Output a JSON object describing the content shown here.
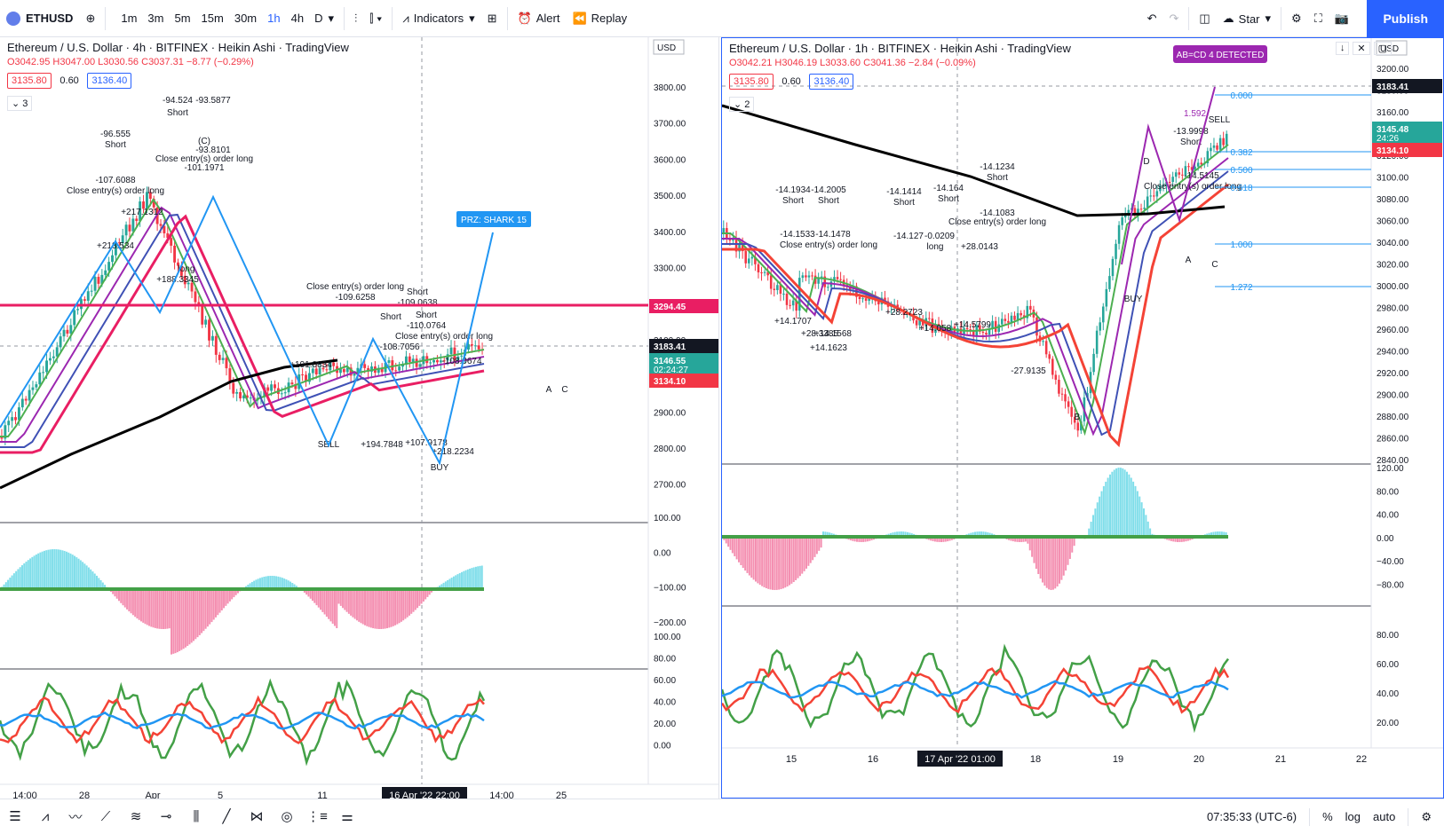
{
  "toolbar": {
    "symbol": "ETHUSD",
    "timeframes": [
      "1m",
      "3m",
      "5m",
      "15m",
      "30m",
      "1h",
      "4h",
      "D"
    ],
    "indicators_label": "Indicators",
    "alert_label": "Alert",
    "replay_label": "Replay",
    "star_label": "Star",
    "publish_label": "Publish"
  },
  "left_chart": {
    "title": "Ethereum / U.S. Dollar · 4h · BITFINEX · Heikin Ashi · TradingView",
    "ohlc": {
      "o": "O3042.95",
      "h": "H3047.00",
      "l": "L3030.56",
      "c": "C3037.31",
      "chg": "−8.77 (−0.29%)"
    },
    "sell_price": "3135.80",
    "qty": "0.60",
    "buy_price": "3136.40",
    "indicator_count": "3",
    "currency": "USD",
    "price_ticks": [
      "3800.00",
      "3700.00",
      "3600.00",
      "3500.00",
      "3400.00",
      "3300.00",
      "3200.00",
      "3100.00",
      "3000.00",
      "2900.00",
      "2800.00",
      "2700.00"
    ],
    "osc1_ticks": [
      "100.00",
      "0.00",
      "−100.00",
      "−200.00"
    ],
    "osc2_ticks": [
      "100.00",
      "80.00",
      "60.00",
      "40.00",
      "20.00",
      "0.00"
    ],
    "time_ticks": [
      "14:00",
      "28",
      "Apr",
      "5",
      "11",
      "14:00",
      "25"
    ],
    "crosshair_time": "16 Apr '22   22:00",
    "price_labels": {
      "red_line": "3294.45",
      "crosshair": "3183.41",
      "last": "3146.55",
      "countdown": "02:24:27",
      "ask": "3134.10"
    },
    "prz_label": "PRZ: SHARK 15",
    "annotations": [
      "-96.555",
      "Short",
      "-107.6088",
      "Close entry(s) order long",
      "-94.524",
      "Short",
      "-93.5877",
      "(C)",
      "-93.8101",
      "Close entry(s) order long",
      "-101.1971",
      "Close entry(s) order long",
      "-109.6258",
      "Short",
      "-109.0638",
      "Short",
      "-110.0764",
      "Short",
      "-108.7056",
      "Close entry(s) order long",
      "-108.0674",
      "long",
      "+188.3345",
      "+191.0834",
      "+194.7848",
      "+107.9178",
      "+218.2234",
      "+217.1312",
      "+218.534",
      "SELL",
      "BUY",
      "A",
      "C"
    ]
  },
  "right_chart": {
    "title": "Ethereum / U.S. Dollar · 1h · BITFINEX · Heikin Ashi · TradingView",
    "ohlc": {
      "o": "O3042.21",
      "h": "H3046.19",
      "l": "L3033.60",
      "c": "C3041.36",
      "chg": "−2.84 (−0.09%)"
    },
    "sell_price": "3135.80",
    "qty": "0.60",
    "buy_price": "3136.40",
    "indicator_count": "2",
    "currency": "USD",
    "price_ticks": [
      "3200.00",
      "3180.00",
      "3160.00",
      "3140.00",
      "3120.00",
      "3100.00",
      "3080.00",
      "3060.00",
      "3040.00",
      "3020.00",
      "3000.00",
      "2980.00",
      "2960.00",
      "2940.00",
      "2920.00",
      "2900.00",
      "2880.00",
      "2860.00",
      "2840.00"
    ],
    "osc1_ticks": [
      "120.00",
      "80.00",
      "40.00",
      "0.00",
      "−40.00",
      "−80.00"
    ],
    "osc2_ticks": [
      "80.00",
      "60.00",
      "40.00",
      "20.00"
    ],
    "time_ticks": [
      "15",
      "16",
      "18",
      "19",
      "20",
      "21",
      "22"
    ],
    "crosshair_time": "17 Apr '22   01:00",
    "price_labels": {
      "crosshair": "3183.41",
      "last": "3145.48",
      "countdown": "24:26",
      "ask": "3134.10"
    },
    "pattern_label": "AB=CD 4 DETECTED",
    "fib_levels": [
      "0.000",
      "0.382",
      "0.500",
      "0.618",
      "1.000",
      "1.272"
    ],
    "fib_extra": "1.592",
    "annotations": [
      "-13.9998",
      "Short",
      "-14.5145",
      "Close entry(s) order long",
      "-14.1934",
      "Short",
      "-14.2005",
      "Short",
      "-14.1414",
      "Short",
      "-14.164",
      "Short",
      "-14.1234",
      "Short",
      "-14.1083",
      "Close entry(s) order long",
      "-14.1533",
      "-14.1478",
      "Close entry(s) order long",
      "-14.127",
      "-0.0209",
      "long",
      "+28.0143",
      "+14.1707",
      "+28.3385",
      "+14.1568",
      "+14.1623",
      "+28.2723",
      "+14.058",
      "+14.5799",
      "-27.9135",
      "B",
      "C",
      "D",
      "A",
      "SELL",
      "BUY"
    ]
  },
  "status": {
    "time": "07:35:33 (UTC-6)",
    "percent": "%",
    "log": "log",
    "auto": "auto"
  },
  "colors": {
    "accent": "#2962ff",
    "up": "#26a69a",
    "down": "#f23645",
    "pink_line": "#e91e63",
    "purple": "#9c27b0"
  }
}
